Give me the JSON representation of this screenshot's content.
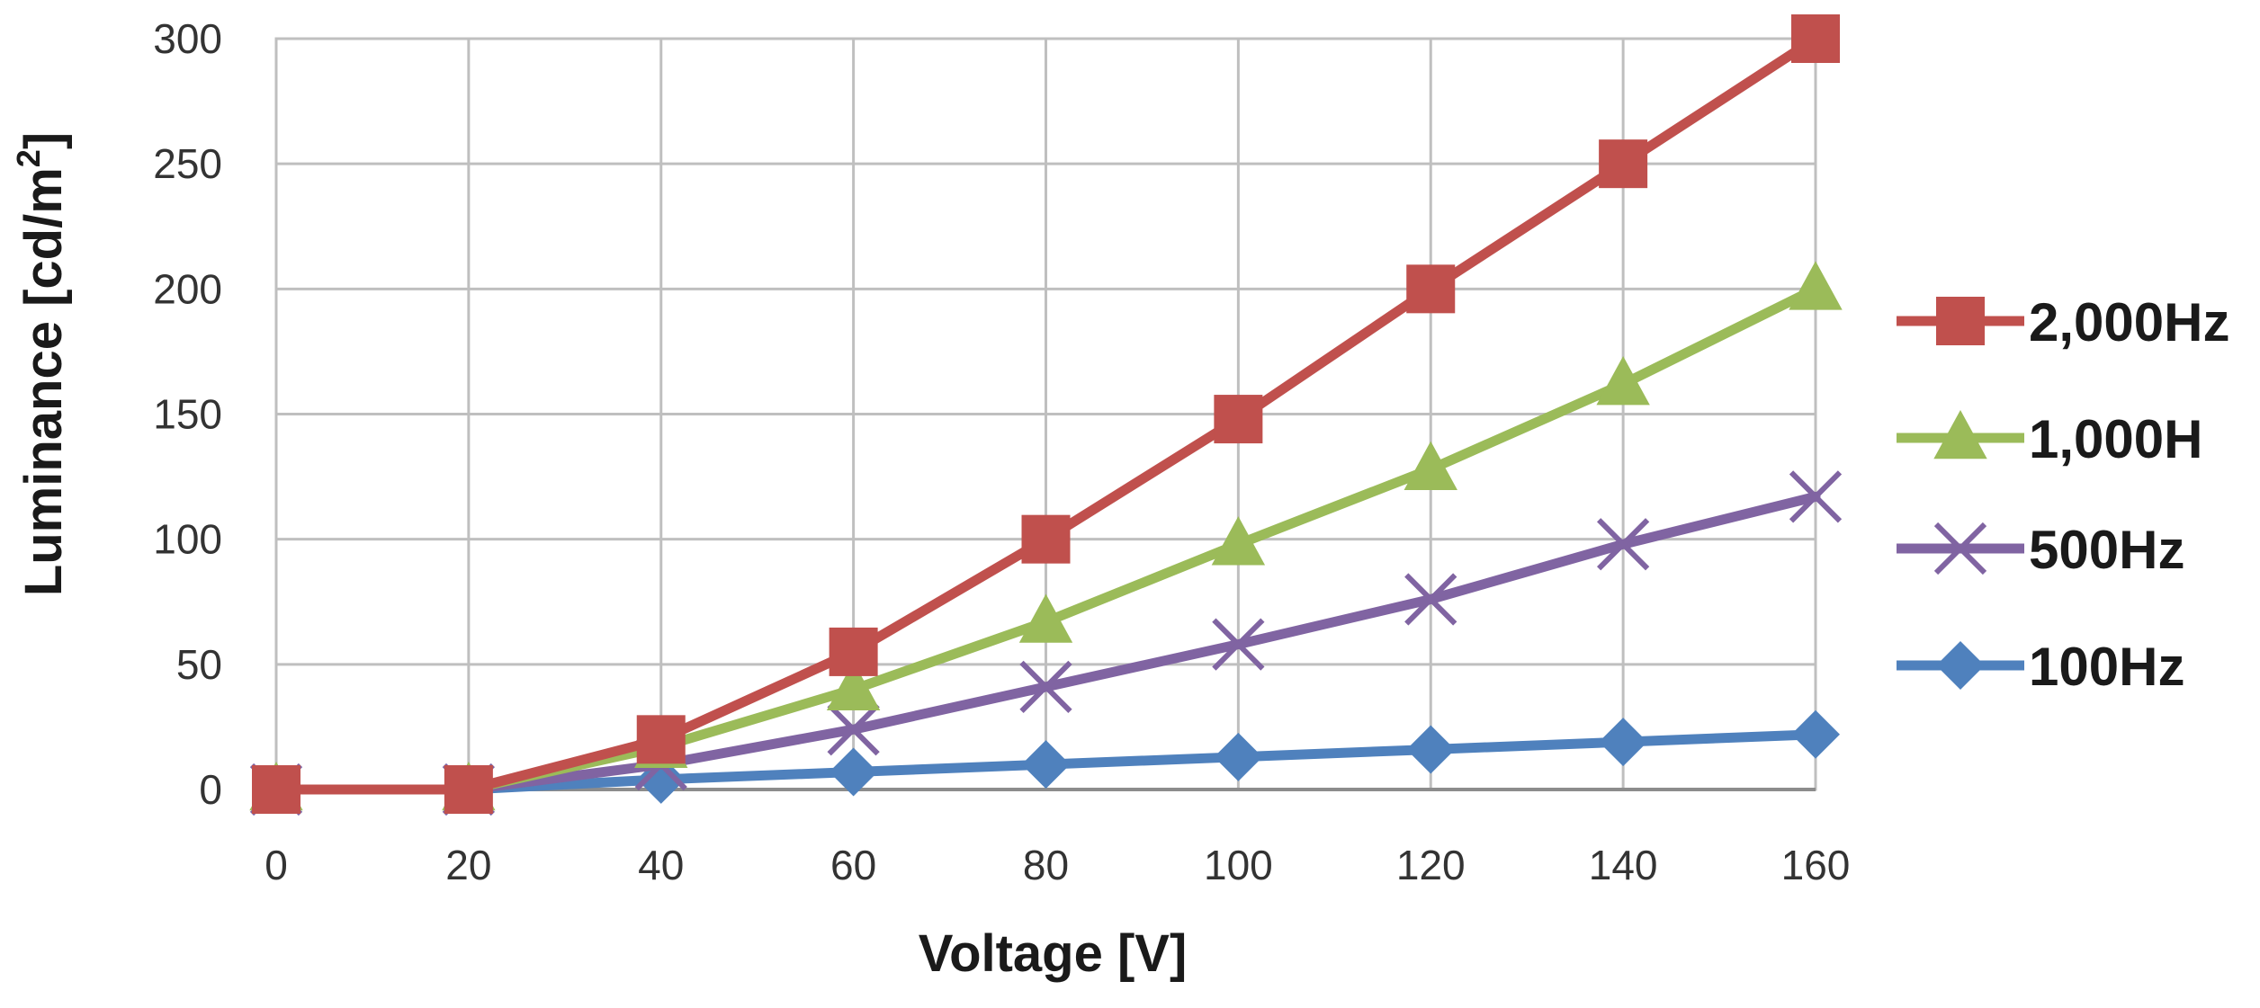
{
  "chart_data": {
    "type": "line",
    "title": "",
    "xlabel": "Voltage [V]",
    "ylabel_prefix": "Luminance [cd/m",
    "ylabel_superscript": "2",
    "ylabel_suffix": "]",
    "x": [
      0,
      20,
      40,
      60,
      80,
      100,
      120,
      140,
      160
    ],
    "xlim": [
      0,
      160
    ],
    "ylim": [
      0,
      300
    ],
    "x_ticks": [
      "0",
      "20",
      "40",
      "60",
      "80",
      "100",
      "120",
      "140",
      "160"
    ],
    "y_ticks": [
      "0",
      "50",
      "100",
      "150",
      "200",
      "250",
      "300"
    ],
    "grid": true,
    "legend_position": "right",
    "series": [
      {
        "name": "2,000Hz",
        "color": "#c0504d",
        "marker": "square",
        "values": [
          0,
          0,
          20,
          55,
          100,
          148,
          200,
          250,
          300
        ]
      },
      {
        "name": "1,000H",
        "color": "#9bbb59",
        "marker": "triangle",
        "values": [
          0,
          0,
          17,
          40,
          67,
          98,
          128,
          162,
          200
        ]
      },
      {
        "name": "500Hz",
        "color": "#8064a2",
        "marker": "x",
        "values": [
          0,
          0,
          10,
          24,
          41,
          58,
          76,
          98,
          117
        ]
      },
      {
        "name": "100Hz",
        "color": "#4f81bd",
        "marker": "diamond",
        "values": [
          0,
          0,
          4,
          7,
          10,
          13,
          16,
          19,
          22
        ]
      }
    ]
  }
}
